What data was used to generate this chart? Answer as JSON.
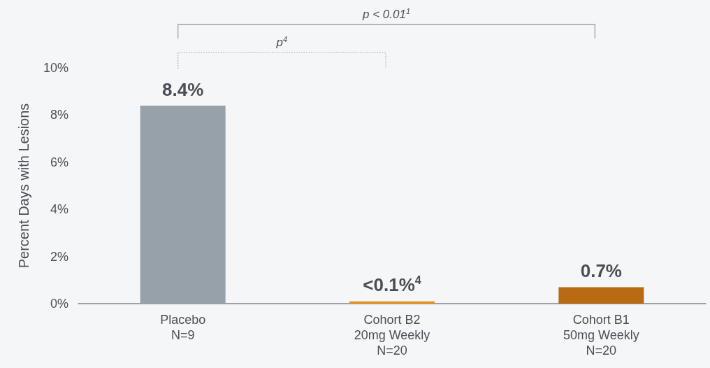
{
  "chart_data": {
    "type": "bar",
    "ylabel": "Percent Days with Lesions",
    "categories": [
      "Placebo\nN=9",
      "Cohort B2\n20mg Weekly\nN=20",
      "Cohort B1\n50mg Weekly\nN=20"
    ],
    "values": [
      8.4,
      0.1,
      0.7
    ],
    "colors": [
      "#97a1aa",
      "#e8921e",
      "#b86b12"
    ],
    "value_labels": [
      "8.4%",
      "<0.1%$^{4}$",
      "0.7%"
    ],
    "ylim": [
      0,
      10
    ],
    "yticks": [
      {
        "value": 0,
        "label": "0%"
      },
      {
        "value": 2,
        "label": "2%"
      },
      {
        "value": 4,
        "label": "4%"
      },
      {
        "value": 6,
        "label": "6%"
      },
      {
        "value": 8,
        "label": "8%"
      },
      {
        "value": 10,
        "label": "10%"
      }
    ],
    "annotations": [
      "p < 0.01$^{1}$",
      "p$^{4}$"
    ]
  }
}
